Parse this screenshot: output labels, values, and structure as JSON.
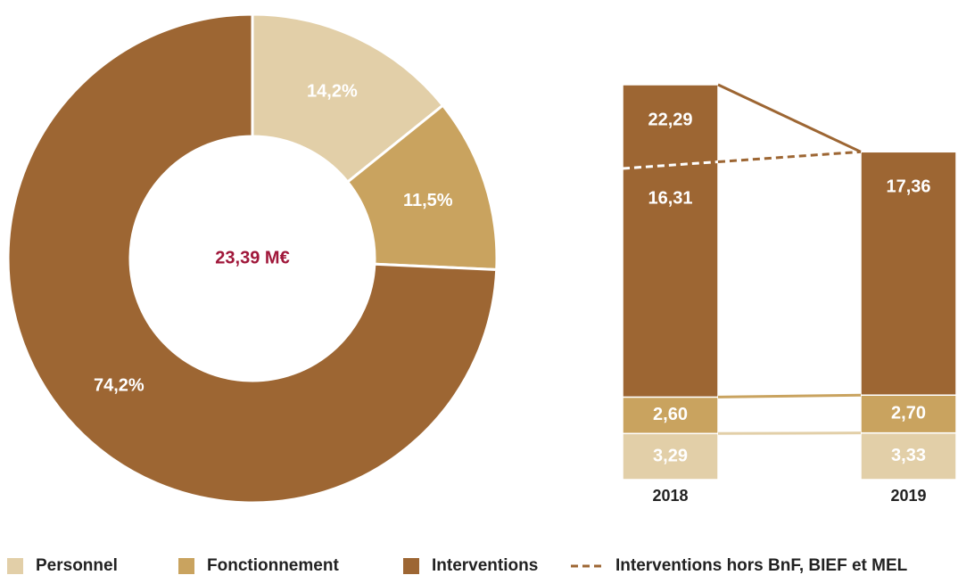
{
  "chart_data": [
    {
      "type": "pie",
      "donut": true,
      "center_label": "23,39 M€",
      "categories": [
        "Personnel",
        "Fonctionnement",
        "Interventions"
      ],
      "values": [
        14.2,
        11.5,
        74.2
      ],
      "value_labels": [
        "14,2%",
        "11,5%",
        "74,2%"
      ],
      "colors": [
        "#e2cfa8",
        "#c9a35f",
        "#9d6633"
      ]
    },
    {
      "type": "bar",
      "stacked": true,
      "categories": [
        "2018",
        "2019"
      ],
      "series": [
        {
          "name": "Personnel",
          "color": "#e2cfa8",
          "values": [
            3.29,
            3.33
          ],
          "value_labels": [
            "3,29",
            "3,33"
          ]
        },
        {
          "name": "Fonctionnement",
          "color": "#c9a35f",
          "values": [
            2.6,
            2.7
          ],
          "value_labels": [
            "2,60",
            "2,70"
          ]
        },
        {
          "name": "Interventions",
          "color": "#9d6633",
          "values": [
            22.29,
            17.36
          ],
          "value_labels": [
            "22,29",
            "17,36"
          ]
        },
        {
          "name": "Interventions hors BnF, BIEF et MEL",
          "type": "line",
          "dashed": true,
          "color": "#9d6633",
          "values": [
            16.31,
            17.36
          ],
          "value_labels": [
            "16,31",
            null
          ]
        }
      ]
    }
  ]
}
